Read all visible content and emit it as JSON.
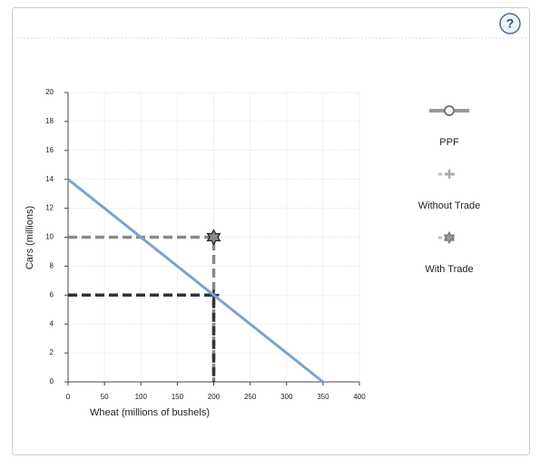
{
  "help": "?",
  "chart_data": {
    "type": "line",
    "xlabel": "Wheat (millions of bushels)",
    "ylabel": "Cars (millions)",
    "xlim": [
      0,
      400
    ],
    "xticks": [
      0,
      50,
      100,
      150,
      200,
      250,
      300,
      350,
      400
    ],
    "ylim": [
      0,
      20
    ],
    "yticks": [
      0,
      2,
      4,
      6,
      8,
      10,
      12,
      14,
      16,
      18,
      20
    ],
    "grid": true,
    "legend": "right",
    "series": [
      {
        "name": "PPF",
        "color": "#7ba3cf",
        "marker": "line",
        "x": [
          0,
          350
        ],
        "values": [
          14,
          0
        ]
      },
      {
        "name": "Without Trade",
        "color": "#333333",
        "marker": "plus",
        "x": [
          200
        ],
        "values": [
          6
        ]
      },
      {
        "name": "With Trade",
        "color": "#8a8a8a",
        "marker": "star",
        "x": [
          200
        ],
        "values": [
          10
        ]
      }
    ]
  }
}
